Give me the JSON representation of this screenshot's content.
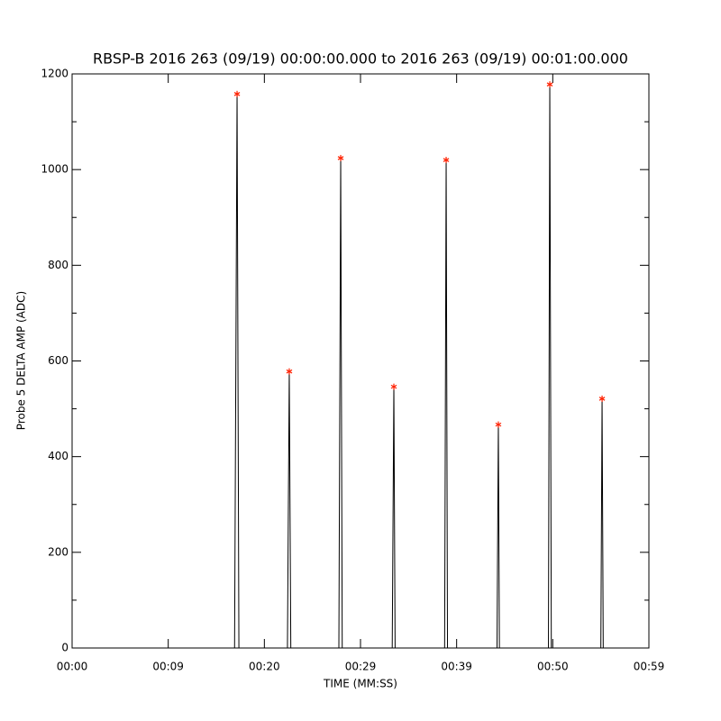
{
  "chart_data": {
    "type": "line",
    "title": "RBSP-B 2016 263 (09/19) 00:00:00.000 to 2016 263 (09/19) 00:01:00.000",
    "x_label": "TIME (MM:SS)",
    "y_label": "Probe 5 DELTA AMP (ADC)",
    "xlim": [
      0,
      60
    ],
    "ylim": [
      0,
      1200
    ],
    "xticks": [
      {
        "value": 0,
        "label": "00:00"
      },
      {
        "value": 10,
        "label": "00:09"
      },
      {
        "value": 20,
        "label": "00:20"
      },
      {
        "value": 30,
        "label": "00:29"
      },
      {
        "value": 40,
        "label": "00:39"
      },
      {
        "value": 50,
        "label": "00:50"
      },
      {
        "value": 60,
        "label": "00:59"
      }
    ],
    "yticks": [
      0,
      200,
      400,
      600,
      800,
      1000,
      1200
    ],
    "yminorticks": [
      100,
      300,
      500,
      700,
      900,
      1100
    ],
    "series": [
      {
        "color": "#000000",
        "kind": "line",
        "x": [
          0,
          16.9,
          17.16,
          17.35,
          22.4,
          22.59,
          22.75,
          27.75,
          27.94,
          28.1,
          33.3,
          33.47,
          33.6,
          38.75,
          38.91,
          39.05,
          44.2,
          44.34,
          44.45,
          49.55,
          49.69,
          49.85,
          55.0,
          55.13,
          55.25,
          60
        ],
        "values": [
          0,
          0,
          1158,
          0,
          0,
          578,
          0,
          0,
          1024,
          0,
          0,
          546,
          0,
          0,
          1020,
          0,
          0,
          467,
          0,
          0,
          1178,
          0,
          0,
          521,
          0,
          0
        ]
      },
      {
        "color": "#ff2000",
        "kind": "asterisk",
        "x": [
          17.16,
          22.59,
          27.94,
          33.47,
          38.91,
          44.34,
          49.69,
          55.13
        ],
        "values": [
          1158,
          578,
          1024,
          546,
          1020,
          467,
          1178,
          521
        ]
      }
    ]
  }
}
